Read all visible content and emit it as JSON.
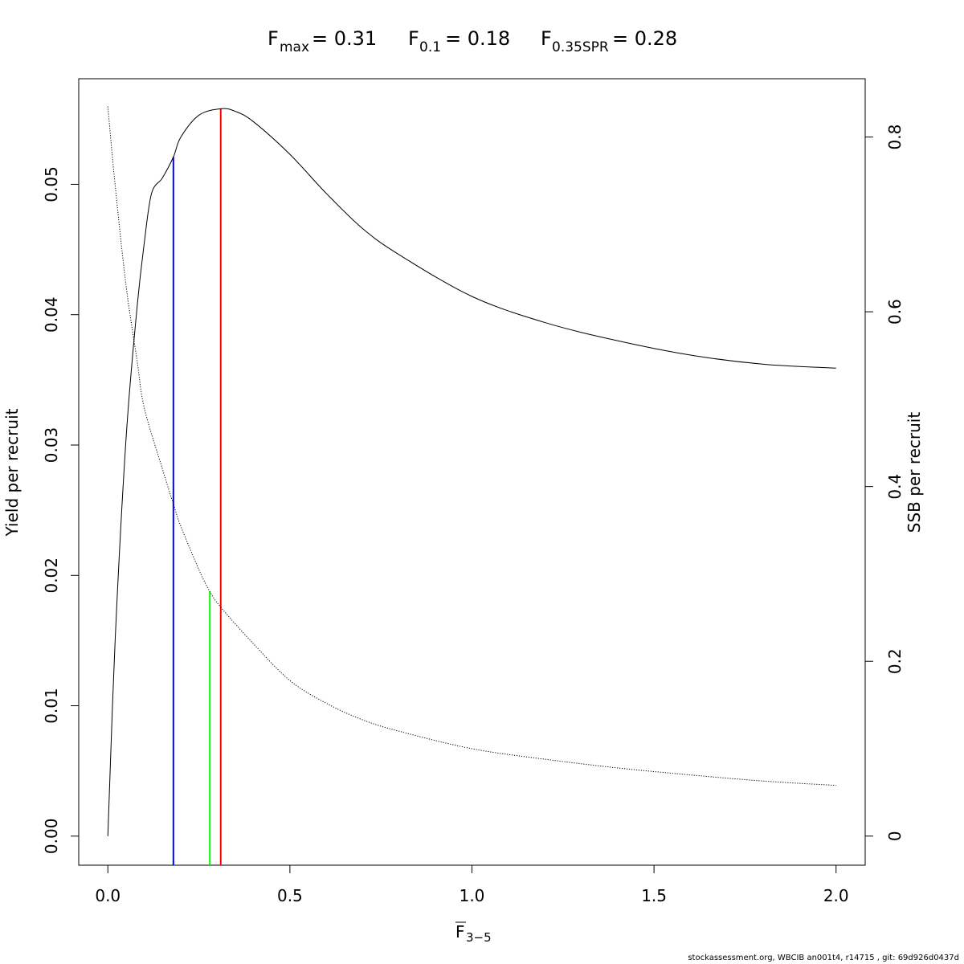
{
  "chart_data": {
    "type": "line",
    "title": {
      "fmax_label": "F",
      "fmax_sub": "max",
      "fmax_value": "= 0.31",
      "f01_label": "F",
      "f01_sub": "0.1",
      "f01_value": "= 0.18",
      "fspr_label": "F",
      "fspr_sub": "0.35SPR",
      "fspr_value": "= 0.28"
    },
    "xlabel": "F",
    "xlabel_sub": "3−5",
    "ylabel_left": "Yield per recruit",
    "ylabel_right": "SSB per recruit",
    "xlim": [
      -0.08,
      2.08
    ],
    "ylim_left": [
      -0.00223,
      0.0581
    ],
    "ylim_right": [
      -0.0333,
      0.8667
    ],
    "x_ticks": [
      0,
      0.5,
      1,
      1.5,
      2
    ],
    "x_tick_labels": [
      "0.0",
      "0.5",
      "1.0",
      "1.5",
      "2.0"
    ],
    "y_left_ticks": [
      0,
      0.01,
      0.02,
      0.03,
      0.04,
      0.05
    ],
    "y_left_tick_labels": [
      "0.00",
      "0.01",
      "0.02",
      "0.03",
      "0.04",
      "0.05"
    ],
    "y_right_ticks": [
      0,
      0.2,
      0.4,
      0.6,
      0.8
    ],
    "y_right_tick_labels": [
      "0",
      "0.2",
      "0.4",
      "0.6",
      "0.8"
    ],
    "grid": false,
    "series": [
      {
        "axis": "left",
        "style": "solid",
        "color": "#000000",
        "x": [
          0,
          0.02,
          0.05,
          0.08,
          0.1,
          0.12,
          0.15,
          0.18,
          0.2,
          0.25,
          0.31,
          0.35,
          0.4,
          0.5,
          0.6,
          0.7,
          0.8,
          1.0,
          1.2,
          1.4,
          1.6,
          1.8,
          2.0
        ],
        "values": [
          0.0,
          0.015,
          0.0305,
          0.0405,
          0.0455,
          0.0493,
          0.0505,
          0.0521,
          0.0536,
          0.0553,
          0.0558,
          0.0556,
          0.0548,
          0.0523,
          0.0493,
          0.0466,
          0.0446,
          0.0414,
          0.0394,
          0.038,
          0.0369,
          0.0362,
          0.0359
        ]
      },
      {
        "axis": "right",
        "style": "dotted",
        "color": "#000000",
        "x": [
          0,
          0.02,
          0.05,
          0.08,
          0.1,
          0.15,
          0.18,
          0.2,
          0.25,
          0.28,
          0.31,
          0.4,
          0.5,
          0.6,
          0.7,
          0.8,
          1.0,
          1.2,
          1.4,
          1.6,
          1.8,
          2.0
        ],
        "values": [
          0.835,
          0.745,
          0.63,
          0.545,
          0.49,
          0.42,
          0.38,
          0.355,
          0.305,
          0.28,
          0.262,
          0.22,
          0.178,
          0.152,
          0.133,
          0.12,
          0.1,
          0.088,
          0.078,
          0.07,
          0.063,
          0.058
        ]
      }
    ],
    "reference_lines": [
      {
        "name": "F0.1",
        "x": 0.18,
        "y_top": 0.0521,
        "axis": "left",
        "color": "#0000ff"
      },
      {
        "name": "F0.35SPR",
        "x": 0.28,
        "y_top": 0.28,
        "axis": "right",
        "color": "#00ff00"
      },
      {
        "name": "Fmax",
        "x": 0.31,
        "y_top": 0.0558,
        "axis": "left",
        "color": "#ff0000"
      }
    ]
  },
  "footer_text": "stockassessment.org, WBCIB  an001t4, r14715 , git: 69d926d0437d"
}
